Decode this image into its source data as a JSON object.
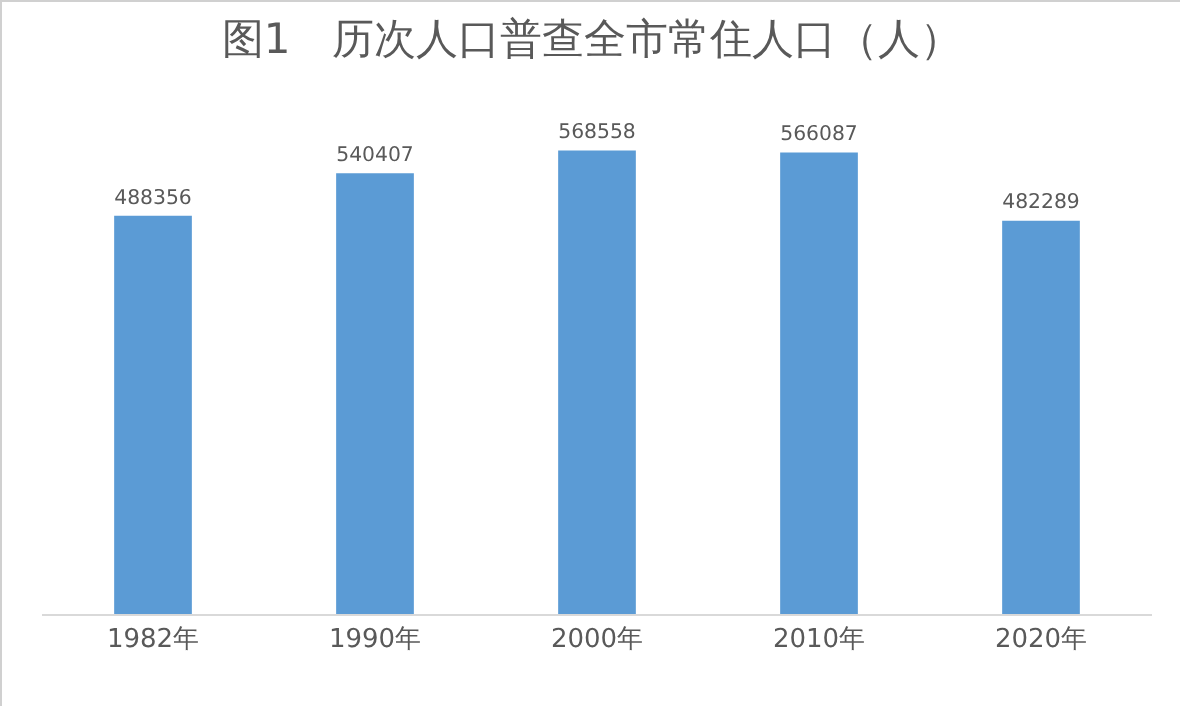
{
  "chart_data": {
    "type": "bar",
    "title": "图1　历次人口普查全市常住人口（人）",
    "categories": [
      "1982年",
      "1990年",
      "2000年",
      "2010年",
      "2020年"
    ],
    "values": [
      488356,
      540407,
      568558,
      566087,
      482289
    ],
    "color": "#5b9bd5",
    "data_labels": true,
    "grid": false,
    "legend": false
  }
}
